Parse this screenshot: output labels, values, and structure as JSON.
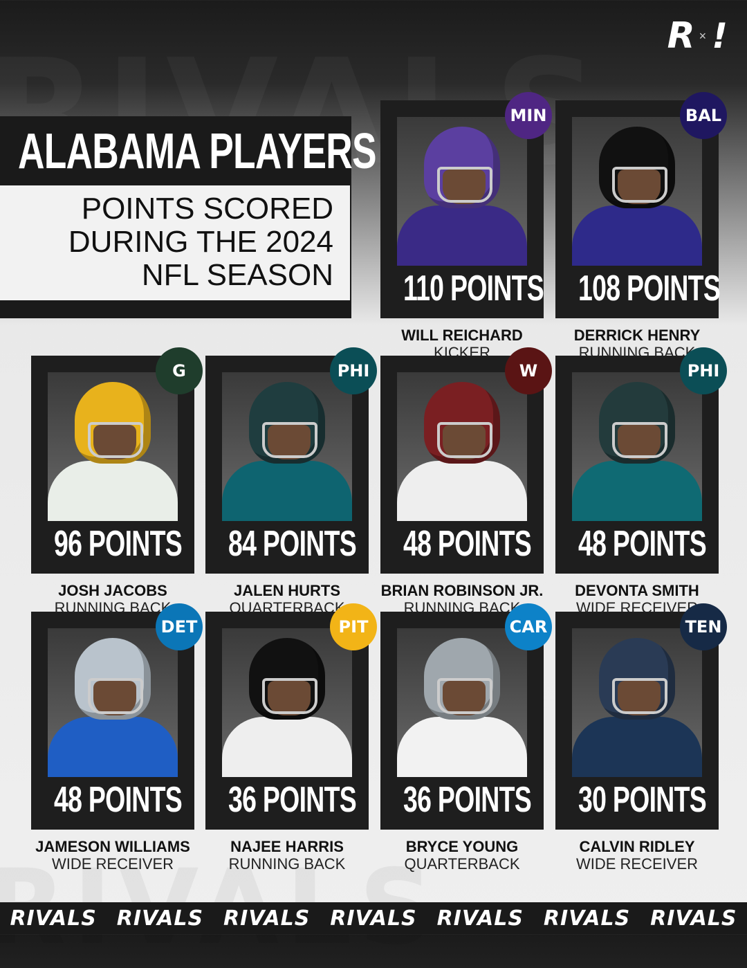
{
  "header": {
    "title": "ALABAMA PLAYERS",
    "subtitle_lines": [
      "POINTS SCORED",
      "DURING THE 2024",
      "NFL SEASON"
    ],
    "logo_left": "R",
    "logo_sep": "×",
    "logo_right": "!"
  },
  "players": [
    {
      "points": "110 POINTS",
      "name": "WILL REICHARD",
      "position": "KICKER",
      "team_icon": "vikings-logo-icon",
      "team_abbr": "MIN",
      "badge_color": "#4f2683",
      "helmet_color": "#5b3fa0",
      "torso_color": "#3a2a86"
    },
    {
      "points": "108 POINTS",
      "name": "DERRICK HENRY",
      "position": "RUNNING BACK",
      "team_icon": "ravens-logo-icon",
      "team_abbr": "BAL",
      "badge_color": "#1f1760",
      "helmet_color": "#111111",
      "torso_color": "#2e2a8a"
    },
    {
      "points": "96 POINTS",
      "name": "JOSH JACOBS",
      "position": "RUNNING BACK",
      "team_icon": "packers-logo-icon",
      "team_abbr": "G",
      "badge_color": "#1f3d2c",
      "helmet_color": "#e8b21c",
      "torso_color": "#e9eee8"
    },
    {
      "points": "84 POINTS",
      "name": "JALEN HURTS",
      "position": "QUARTERBACK",
      "team_icon": "eagles-logo-icon",
      "team_abbr": "PHI",
      "badge_color": "#0b4e56",
      "helmet_color": "#1f3d3f",
      "torso_color": "#0e6470"
    },
    {
      "points": "48 POINTS",
      "name": "BRIAN ROBINSON JR.",
      "position": "RUNNING BACK",
      "team_icon": "commanders-logo-icon",
      "team_abbr": "W",
      "badge_color": "#5a1414",
      "helmet_color": "#7a1f22",
      "torso_color": "#eeeeee"
    },
    {
      "points": "48 POINTS",
      "name": "DEVONTA SMITH",
      "position": "WIDE RECEIVER",
      "team_icon": "eagles-logo-icon",
      "team_abbr": "PHI",
      "badge_color": "#0b4e56",
      "helmet_color": "#233b3c",
      "torso_color": "#0f6a73"
    },
    {
      "points": "48 POINTS",
      "name": "JAMESON WILLIAMS",
      "position": "WIDE RECEIVER",
      "team_icon": "lions-logo-icon",
      "team_abbr": "DET",
      "badge_color": "#0b76b7",
      "helmet_color": "#b9c3cc",
      "torso_color": "#1f5ec4"
    },
    {
      "points": "36 POINTS",
      "name": "NAJEE HARRIS",
      "position": "RUNNING BACK",
      "team_icon": "steelers-logo-icon",
      "team_abbr": "PIT",
      "badge_color": "#f2b417",
      "helmet_color": "#111111",
      "torso_color": "#eeeeee"
    },
    {
      "points": "36 POINTS",
      "name": "BRYCE YOUNG",
      "position": "QUARTERBACK",
      "team_icon": "panthers-logo-icon",
      "team_abbr": "CAR",
      "badge_color": "#0d82c8",
      "helmet_color": "#9fa7ad",
      "torso_color": "#f2f2f2"
    },
    {
      "points": "30 POINTS",
      "name": "CALVIN RIDLEY",
      "position": "WIDE RECEIVER",
      "team_icon": "titans-logo-icon",
      "team_abbr": "TEN",
      "badge_color": "#162a46",
      "helmet_color": "#2a3b55",
      "torso_color": "#1c3556"
    }
  ],
  "banner": {
    "word": "RIVALS",
    "count": 7
  },
  "colors": {
    "dark": "#1a1a1a",
    "light": "#efefef"
  }
}
